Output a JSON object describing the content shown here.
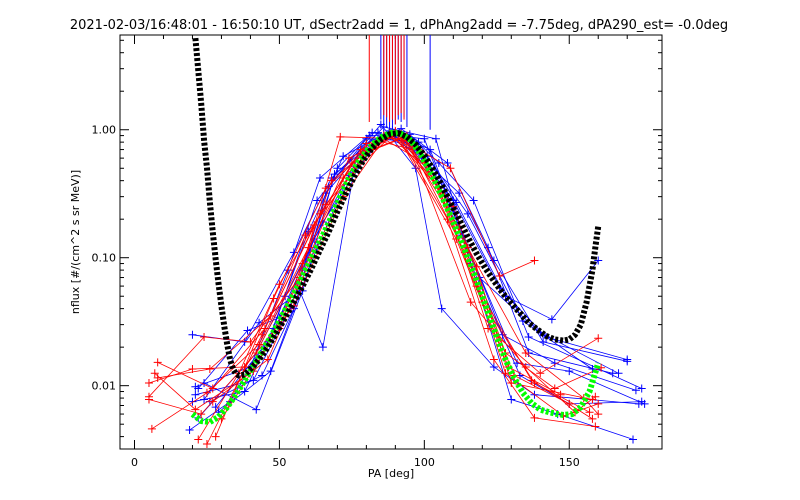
{
  "chart_data": {
    "type": "scatter",
    "title": "2021-02-03/16:48:01 - 16:50:10 UT, dSectr2add = 1, dPhAng2add = -7.75deg, dPA290_est=  -0.0deg",
    "xlabel": "PA [deg]",
    "ylabel": "nflux [#/(cm^2 s sr MeV)]",
    "xlim": [
      -5,
      182
    ],
    "ylim": [
      0.0032,
      5.5
    ],
    "yscale": "log",
    "xticks": [
      0,
      50,
      100,
      150
    ],
    "xtick_labels": [
      "0",
      "50",
      "100",
      "150"
    ],
    "yticks": [
      0.01,
      0.1,
      1.0
    ],
    "ytick_labels": [
      "0.01",
      "0.10",
      "1.00"
    ],
    "grid": false,
    "legend": "none",
    "colors": {
      "red": "#ff0000",
      "blue": "#0000ff",
      "green": "#00ff00",
      "black": "#000000"
    },
    "red_series": [
      [
        [
          5,
          0.0105
        ],
        [
          20,
          0.0135
        ],
        [
          38,
          0.014
        ],
        [
          55,
          0.042
        ],
        [
          72,
          0.3
        ],
        [
          86,
          0.85
        ],
        [
          100,
          0.55
        ],
        [
          115,
          0.12
        ],
        [
          135,
          0.018
        ],
        [
          155,
          0.008
        ],
        [
          160,
          0.006
        ]
      ],
      [
        [
          5,
          0.0082
        ],
        [
          24,
          0.024
        ],
        [
          40,
          0.022
        ],
        [
          57,
          0.07
        ],
        [
          72,
          0.42
        ],
        [
          88,
          0.95
        ],
        [
          103,
          0.42
        ],
        [
          118,
          0.06
        ],
        [
          137,
          0.011
        ],
        [
          158,
          0.0055
        ]
      ],
      [
        [
          6,
          0.0046
        ],
        [
          25,
          0.0088
        ],
        [
          43,
          0.021
        ],
        [
          60,
          0.12
        ],
        [
          75,
          0.55
        ],
        [
          89,
          0.9
        ],
        [
          105,
          0.35
        ],
        [
          120,
          0.045
        ],
        [
          138,
          0.0105
        ],
        [
          157,
          0.0062
        ]
      ],
      [
        [
          8,
          0.0152
        ],
        [
          27,
          0.0095
        ],
        [
          45,
          0.028
        ],
        [
          62,
          0.18
        ],
        [
          78,
          0.7
        ],
        [
          90,
          0.98
        ],
        [
          107,
          0.3
        ],
        [
          122,
          0.028
        ],
        [
          140,
          0.0125
        ],
        [
          160,
          0.0235
        ]
      ],
      [
        [
          5,
          0.0078
        ],
        [
          23,
          0.006
        ],
        [
          42,
          0.018
        ],
        [
          58,
          0.09
        ],
        [
          74,
          0.6
        ],
        [
          91,
          0.92
        ],
        [
          108,
          0.2
        ],
        [
          124,
          0.016
        ],
        [
          138,
          0.0056
        ],
        [
          159,
          0.0048
        ]
      ],
      [
        [
          8,
          0.0115
        ],
        [
          26,
          0.0135
        ],
        [
          47,
          0.035
        ],
        [
          64,
          0.22
        ],
        [
          80,
          0.78
        ],
        [
          92,
          0.93
        ],
        [
          110,
          0.25
        ],
        [
          128,
          0.018
        ],
        [
          145,
          0.0095
        ],
        [
          161,
          0.0138
        ]
      ],
      [
        [
          7,
          0.0125
        ],
        [
          21,
          0.0065
        ],
        [
          41,
          0.013
        ],
        [
          56,
          0.06
        ],
        [
          71,
          0.88
        ],
        [
          93,
          0.85
        ],
        [
          112,
          0.17
        ],
        [
          128,
          0.0125
        ],
        [
          148,
          0.0058
        ],
        [
          160,
          0.0072
        ]
      ],
      [
        [
          22,
          0.0038
        ],
        [
          36,
          0.0125
        ],
        [
          50,
          0.062
        ],
        [
          66,
          0.26
        ],
        [
          82,
          0.7
        ],
        [
          94,
          0.9
        ],
        [
          116,
          0.045
        ],
        [
          135,
          0.014
        ],
        [
          152,
          0.0062
        ],
        [
          159,
          0.0082
        ]
      ],
      [
        [
          25,
          0.0035
        ],
        [
          44,
          0.025
        ],
        [
          59,
          0.15
        ],
        [
          76,
          0.48
        ],
        [
          90,
          0.96
        ],
        [
          111,
          0.14
        ],
        [
          129,
          0.014
        ],
        [
          147,
          0.0085
        ]
      ],
      [
        [
          28,
          0.004
        ],
        [
          48,
          0.048
        ],
        [
          66,
          0.35
        ],
        [
          84,
          0.82
        ],
        [
          96,
          0.7
        ],
        [
          114,
          0.11
        ],
        [
          131,
          0.012
        ],
        [
          150,
          0.0072
        ]
      ],
      [
        [
          30,
          0.0055
        ],
        [
          50,
          0.028
        ],
        [
          68,
          0.4
        ],
        [
          86,
          0.9
        ],
        [
          98,
          0.7
        ],
        [
          118,
          0.085
        ],
        [
          130,
          0.0105
        ],
        [
          158,
          0.0078
        ]
      ],
      [
        [
          27,
          0.0075
        ],
        [
          46,
          0.016
        ],
        [
          61,
          0.1
        ],
        [
          79,
          0.65
        ],
        [
          92,
          0.85
        ],
        [
          109,
          0.5
        ],
        [
          126,
          0.072
        ],
        [
          138,
          0.095
        ]
      ]
    ],
    "blue_series": [
      [
        [
          20,
          0.025
        ],
        [
          38,
          0.022
        ],
        [
          55,
          0.11
        ],
        [
          68,
          0.42
        ],
        [
          86,
          1.05
        ],
        [
          104,
          0.85
        ],
        [
          116,
          0.09
        ],
        [
          133,
          0.012
        ],
        [
          150,
          0.0072
        ],
        [
          175,
          0.0075
        ]
      ],
      [
        [
          19,
          0.0045
        ],
        [
          33,
          0.0075
        ],
        [
          48,
          0.028
        ],
        [
          63,
          0.28
        ],
        [
          80,
          0.85
        ],
        [
          94,
          0.82
        ],
        [
          110,
          0.24
        ],
        [
          127,
          0.025
        ],
        [
          145,
          0.015
        ],
        [
          173,
          0.0092
        ]
      ],
      [
        [
          22,
          0.0056
        ],
        [
          42,
          0.018
        ],
        [
          52,
          0.05
        ],
        [
          65,
          0.19
        ],
        [
          83,
          0.78
        ],
        [
          92,
          1.02
        ],
        [
          108,
          0.55
        ],
        [
          122,
          0.12
        ],
        [
          136,
          0.018
        ],
        [
          165,
          0.0125
        ]
      ],
      [
        [
          20,
          0.0075
        ],
        [
          38,
          0.009
        ],
        [
          58,
          0.08
        ],
        [
          66,
          0.32
        ],
        [
          84,
          0.95
        ],
        [
          96,
          0.75
        ],
        [
          110,
          0.28
        ],
        [
          126,
          0.058
        ],
        [
          142,
          0.024
        ],
        [
          170,
          0.016
        ]
      ],
      [
        [
          21,
          0.0098
        ],
        [
          40,
          0.014
        ],
        [
          53,
          0.08
        ],
        [
          64,
          0.42
        ],
        [
          82,
          0.95
        ],
        [
          98,
          0.8
        ],
        [
          111,
          0.27
        ],
        [
          128,
          0.05
        ],
        [
          144,
          0.033
        ],
        [
          160,
          0.095
        ]
      ],
      [
        [
          26,
          0.0075
        ],
        [
          44,
          0.012
        ],
        [
          55,
          0.04
        ],
        [
          67,
          0.36
        ],
        [
          85,
          1.1
        ],
        [
          97,
          0.5
        ],
        [
          106,
          0.04
        ],
        [
          124,
          0.014
        ],
        [
          138,
          0.0085
        ],
        [
          174,
          0.0072
        ]
      ],
      [
        [
          24,
          0.0105
        ],
        [
          42,
          0.0065
        ],
        [
          58,
          0.055
        ],
        [
          69,
          0.45
        ],
        [
          86,
          0.92
        ],
        [
          100,
          0.85
        ],
        [
          113,
          0.15
        ],
        [
          130,
          0.0078
        ],
        [
          146,
          0.006
        ],
        [
          172,
          0.0038
        ]
      ],
      [
        [
          28,
          0.0068
        ],
        [
          46,
          0.022
        ],
        [
          60,
          0.16
        ],
        [
          72,
          0.62
        ],
        [
          88,
          0.98
        ],
        [
          102,
          0.7
        ],
        [
          115,
          0.12
        ],
        [
          132,
          0.015
        ],
        [
          150,
          0.013
        ],
        [
          176,
          0.0072
        ]
      ],
      [
        [
          22,
          0.0095
        ],
        [
          39,
          0.027
        ],
        [
          50,
          0.034
        ],
        [
          62,
          0.14
        ],
        [
          78,
          0.65
        ],
        [
          90,
          0.9
        ],
        [
          104,
          0.42
        ],
        [
          119,
          0.07
        ],
        [
          140,
          0.026
        ],
        [
          167,
          0.0125
        ]
      ],
      [
        [
          24,
          0.0078
        ],
        [
          43,
          0.031
        ],
        [
          57,
          0.055
        ],
        [
          65,
          0.02
        ],
        [
          76,
          0.52
        ],
        [
          87,
          0.87
        ],
        [
          101,
          0.62
        ],
        [
          115,
          0.22
        ],
        [
          134,
          0.032
        ],
        [
          158,
          0.0135
        ]
      ],
      [
        [
          21,
          0.0085
        ],
        [
          41,
          0.011
        ],
        [
          54,
          0.042
        ],
        [
          70,
          0.5
        ],
        [
          81,
          0.9
        ],
        [
          95,
          0.92
        ],
        [
          105,
          0.55
        ],
        [
          117,
          0.28
        ],
        [
          136,
          0.024
        ],
        [
          175,
          0.0095
        ]
      ],
      [
        [
          29,
          0.0062
        ],
        [
          47,
          0.013
        ],
        [
          63,
          0.12
        ],
        [
          74,
          0.44
        ],
        [
          89,
          1.0
        ],
        [
          99,
          0.6
        ],
        [
          112,
          0.32
        ],
        [
          124,
          0.095
        ],
        [
          141,
          0.022
        ],
        [
          170,
          0.0155
        ]
      ]
    ],
    "green_series": [
      [
        20,
        0.006
      ],
      [
        23,
        0.0053
      ],
      [
        26,
        0.0052
      ],
      [
        29,
        0.0057
      ],
      [
        32,
        0.0068
      ],
      [
        35,
        0.0085
      ],
      [
        38,
        0.011
      ],
      [
        41,
        0.0142
      ],
      [
        44,
        0.0185
      ],
      [
        47,
        0.024
      ],
      [
        50,
        0.032
      ],
      [
        53,
        0.043
      ],
      [
        56,
        0.058
      ],
      [
        59,
        0.08
      ],
      [
        62,
        0.11
      ],
      [
        65,
        0.15
      ],
      [
        68,
        0.21
      ],
      [
        71,
        0.3
      ],
      [
        74,
        0.42
      ],
      [
        77,
        0.55
      ],
      [
        80,
        0.68
      ],
      [
        83,
        0.8
      ],
      [
        86,
        0.9
      ],
      [
        89,
        0.95
      ],
      [
        92,
        0.93
      ],
      [
        95,
        0.84
      ],
      [
        98,
        0.68
      ],
      [
        101,
        0.52
      ],
      [
        104,
        0.38
      ],
      [
        107,
        0.27
      ],
      [
        110,
        0.19
      ],
      [
        113,
        0.13
      ],
      [
        116,
        0.088
      ],
      [
        119,
        0.058
      ],
      [
        122,
        0.037
      ],
      [
        125,
        0.024
      ],
      [
        128,
        0.016
      ],
      [
        131,
        0.0115
      ],
      [
        134,
        0.0088
      ],
      [
        137,
        0.0073
      ],
      [
        140,
        0.0065
      ],
      [
        143,
        0.0062
      ],
      [
        146,
        0.006
      ],
      [
        148,
        0.0059
      ],
      [
        151,
        0.006
      ],
      [
        154,
        0.0068
      ],
      [
        157,
        0.009
      ],
      [
        160,
        0.015
      ]
    ],
    "black_series": [
      [
        21,
        5.2
      ],
      [
        23,
        1.6
      ],
      [
        24,
        0.82
      ],
      [
        25,
        0.5
      ],
      [
        26,
        0.27
      ],
      [
        27,
        0.16
      ],
      [
        28,
        0.098
      ],
      [
        29,
        0.063
      ],
      [
        30,
        0.042
      ],
      [
        31,
        0.029
      ],
      [
        32,
        0.021
      ],
      [
        33,
        0.016
      ],
      [
        34,
        0.0135
      ],
      [
        35,
        0.0124
      ],
      [
        36,
        0.012
      ],
      [
        38,
        0.0122
      ],
      [
        40,
        0.0135
      ],
      [
        43,
        0.016
      ],
      [
        46,
        0.02
      ],
      [
        49,
        0.026
      ],
      [
        52,
        0.034
      ],
      [
        55,
        0.045
      ],
      [
        58,
        0.06
      ],
      [
        61,
        0.082
      ],
      [
        64,
        0.115
      ],
      [
        67,
        0.16
      ],
      [
        70,
        0.23
      ],
      [
        73,
        0.32
      ],
      [
        76,
        0.44
      ],
      [
        79,
        0.58
      ],
      [
        82,
        0.72
      ],
      [
        85,
        0.84
      ],
      [
        88,
        0.92
      ],
      [
        91,
        0.94
      ],
      [
        94,
        0.88
      ],
      [
        97,
        0.77
      ],
      [
        100,
        0.63
      ],
      [
        103,
        0.49
      ],
      [
        106,
        0.37
      ],
      [
        109,
        0.27
      ],
      [
        112,
        0.2
      ],
      [
        115,
        0.145
      ],
      [
        118,
        0.108
      ],
      [
        121,
        0.083
      ],
      [
        124,
        0.066
      ],
      [
        127,
        0.053
      ],
      [
        130,
        0.044
      ],
      [
        133,
        0.037
      ],
      [
        136,
        0.031
      ],
      [
        139,
        0.0275
      ],
      [
        142,
        0.0245
      ],
      [
        145,
        0.023
      ],
      [
        148,
        0.0225
      ],
      [
        150,
        0.023
      ],
      [
        152,
        0.025
      ],
      [
        154,
        0.03
      ],
      [
        156,
        0.045
      ],
      [
        158,
        0.08
      ],
      [
        159,
        0.12
      ],
      [
        160,
        0.175
      ]
    ],
    "blue_error_bars": [
      [
        85,
        5.5,
        1.2
      ],
      [
        86,
        5.5,
        1.1
      ],
      [
        87,
        5.5,
        1.05
      ],
      [
        88,
        5.5,
        1.0
      ],
      [
        89,
        5.5,
        1.02
      ],
      [
        90,
        5.5,
        1.1
      ],
      [
        91,
        5.5,
        1.2
      ],
      [
        92,
        5.5,
        1.15
      ],
      [
        93,
        5.5,
        1.25
      ],
      [
        94,
        5.5,
        1.05
      ],
      [
        102,
        5.5,
        1.0
      ]
    ],
    "red_error_bars": [
      [
        81,
        5.5,
        1.15
      ],
      [
        86,
        5.5,
        1.3
      ],
      [
        87,
        5.5,
        1.25
      ],
      [
        88,
        5.5,
        1.15
      ],
      [
        89,
        5.5,
        1.2
      ],
      [
        90,
        5.5,
        1.1
      ],
      [
        91,
        5.5,
        1.3
      ],
      [
        92,
        5.5,
        1.35
      ],
      [
        93,
        5.5,
        1.2
      ]
    ]
  }
}
